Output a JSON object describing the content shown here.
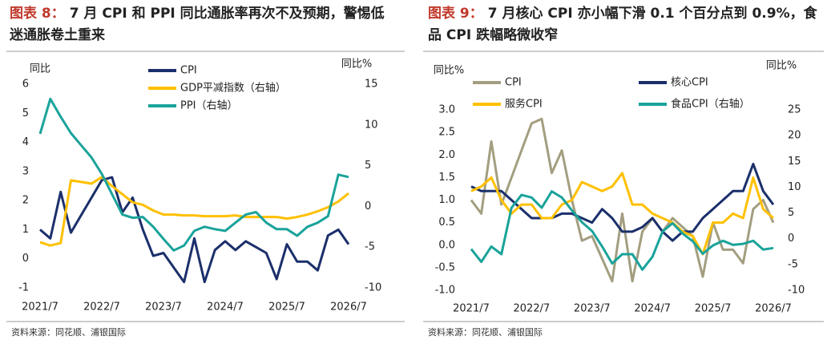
{
  "chart_data": [
    {
      "type": "line",
      "figure_label": "图表 8：",
      "title": "7 月 CPI 和 PPI 同比通胀率再次不及预期，警惕低迷通胀卷土重来",
      "source": "资料来源：同花顺、浦银国际",
      "y_label": "同比",
      "y2_label": "同比%",
      "categories": [
        "2021/7",
        null,
        null,
        null,
        null,
        null,
        "2022/7",
        null,
        null,
        null,
        null,
        null,
        "2023/7",
        null,
        null,
        null,
        null,
        null,
        "2024/7",
        null,
        null,
        null,
        null,
        null,
        "2025/7",
        null,
        null,
        null,
        null,
        null,
        "2026/7"
      ],
      "ylim": [
        -1,
        6
      ],
      "yticks": [
        -1,
        0,
        1,
        2,
        3,
        4,
        5,
        6
      ],
      "y2lim": [
        -10,
        15
      ],
      "y2ticks": [
        -10,
        -5,
        0,
        5,
        10,
        15
      ],
      "series": [
        {
          "name": "CPI",
          "color": "#1b2f6b",
          "values": [
            1.0,
            0.7,
            2.3,
            0.9,
            1.5,
            2.1,
            2.7,
            2.8,
            1.6,
            2.1,
            1.0,
            0.1,
            0.2,
            -0.3,
            -0.8,
            0.7,
            -0.8,
            0.3,
            0.6,
            0.3,
            0.6,
            0.4,
            0.2,
            -0.7,
            0.5,
            -0.1,
            -0.1,
            -0.4,
            0.8,
            1.0,
            0.5
          ]
        },
        {
          "name": "GDP平减指数（右轴）",
          "color": "#ffc000",
          "axis": "y2",
          "values": [
            -4.4,
            -4.8,
            -4.5,
            3.2,
            3.0,
            2.8,
            3.6,
            2.5,
            1.5,
            0.5,
            0.2,
            -0.5,
            -1.0,
            -1.0,
            -1.1,
            -1.1,
            -1.2,
            -1.2,
            -1.2,
            -1.1,
            -1.3,
            -1.3,
            -1.3,
            -1.3,
            -1.5,
            -1.3,
            -1.0,
            -0.6,
            -0.1,
            0.6,
            1.6
          ]
        },
        {
          "name": "PPI（右轴）",
          "color": "#1aa39a",
          "axis": "y2",
          "values": [
            8.9,
            13.2,
            11.0,
            9.0,
            7.5,
            6.0,
            4.0,
            1.5,
            -1.0,
            -1.4,
            -1.3,
            -2.5,
            -4.0,
            -5.4,
            -4.8,
            -3.0,
            -2.5,
            -2.8,
            -3.0,
            -2.0,
            -1.0,
            -0.7,
            -2.0,
            -2.8,
            -2.8,
            -3.6,
            -2.5,
            -2.0,
            -1.2,
            3.9,
            3.6
          ]
        }
      ]
    },
    {
      "type": "line",
      "figure_label": "图表 9：",
      "title": "7 月核心 CPI 亦小幅下滑 0.1 个百分点到 0.9%，食品 CPI 跌幅略微收窄",
      "source": "资料来源：同花顺、浦银国际",
      "y_label": "同比%",
      "y2_label": "同比%",
      "categories": [
        "2021/7",
        null,
        null,
        null,
        null,
        null,
        "2022/7",
        null,
        null,
        null,
        null,
        null,
        "2023/7",
        null,
        null,
        null,
        null,
        null,
        "2024/7",
        null,
        null,
        null,
        null,
        null,
        "2025/7",
        null,
        null,
        null,
        null,
        null,
        "2026/7"
      ],
      "ylim": [
        -1,
        3
      ],
      "yticks": [
        {
          "value": -1,
          "label": "-1.0"
        },
        {
          "value": -0.5,
          "label": "-0.5"
        },
        {
          "value": 0,
          "label": "0.0"
        },
        {
          "value": 0.5,
          "label": "0.5"
        },
        {
          "value": 1,
          "label": "1.0"
        },
        {
          "value": 1.5,
          "label": "1.5"
        },
        {
          "value": 2,
          "label": "2.0"
        },
        {
          "value": 2.5,
          "label": "2.5"
        },
        {
          "value": 3,
          "label": "3.0"
        }
      ],
      "y2lim": [
        -10,
        25
      ],
      "y2ticks": [
        -10,
        -5,
        0,
        5,
        10,
        15,
        20,
        25
      ],
      "series": [
        {
          "name": "CPI",
          "color": "#a39e80",
          "values": [
            1.0,
            0.7,
            2.3,
            0.9,
            1.5,
            2.1,
            2.7,
            2.8,
            1.6,
            2.1,
            1.0,
            0.1,
            0.2,
            -0.3,
            -0.8,
            0.7,
            -0.8,
            0.3,
            0.6,
            0.3,
            0.6,
            0.4,
            0.2,
            -0.7,
            0.5,
            -0.1,
            -0.1,
            -0.4,
            0.8,
            1.0,
            0.5
          ]
        },
        {
          "name": "核心CPI",
          "color": "#1b2f6b",
          "values": [
            1.3,
            1.2,
            1.2,
            1.2,
            1.0,
            0.8,
            0.6,
            0.6,
            0.6,
            0.7,
            0.7,
            0.6,
            0.5,
            0.8,
            0.6,
            0.3,
            0.3,
            0.4,
            0.6,
            0.3,
            0.1,
            0.3,
            0.3,
            0.6,
            0.8,
            1.0,
            1.2,
            1.2,
            1.8,
            1.2,
            0.9
          ]
        },
        {
          "name": "服务CPI",
          "color": "#ffc000",
          "values": [
            1.2,
            1.3,
            1.5,
            1.0,
            0.7,
            0.9,
            0.9,
            0.6,
            0.6,
            0.9,
            1.0,
            1.4,
            1.3,
            1.2,
            1.3,
            1.6,
            0.9,
            0.9,
            0.7,
            0.6,
            0.5,
            0.3,
            0.2,
            -0.2,
            0.5,
            0.5,
            0.7,
            0.6,
            1.5,
            0.8,
            0.6
          ]
        },
        {
          "name": "食品CPI（右轴）",
          "color": "#1aa39a",
          "axis": "y2",
          "values": [
            -2.0,
            -4.5,
            -1.5,
            -3.0,
            6.0,
            8.5,
            8.0,
            6.0,
            9.2,
            8.0,
            5.5,
            3.2,
            1.5,
            -1.5,
            -4.8,
            -3.0,
            -3.0,
            -6.0,
            -3.5,
            1.4,
            3.0,
            1.0,
            -0.5,
            -2.9,
            -1.3,
            -0.4,
            -1.2,
            -1.0,
            -0.4,
            -2.1,
            -1.8
          ]
        }
      ]
    }
  ]
}
